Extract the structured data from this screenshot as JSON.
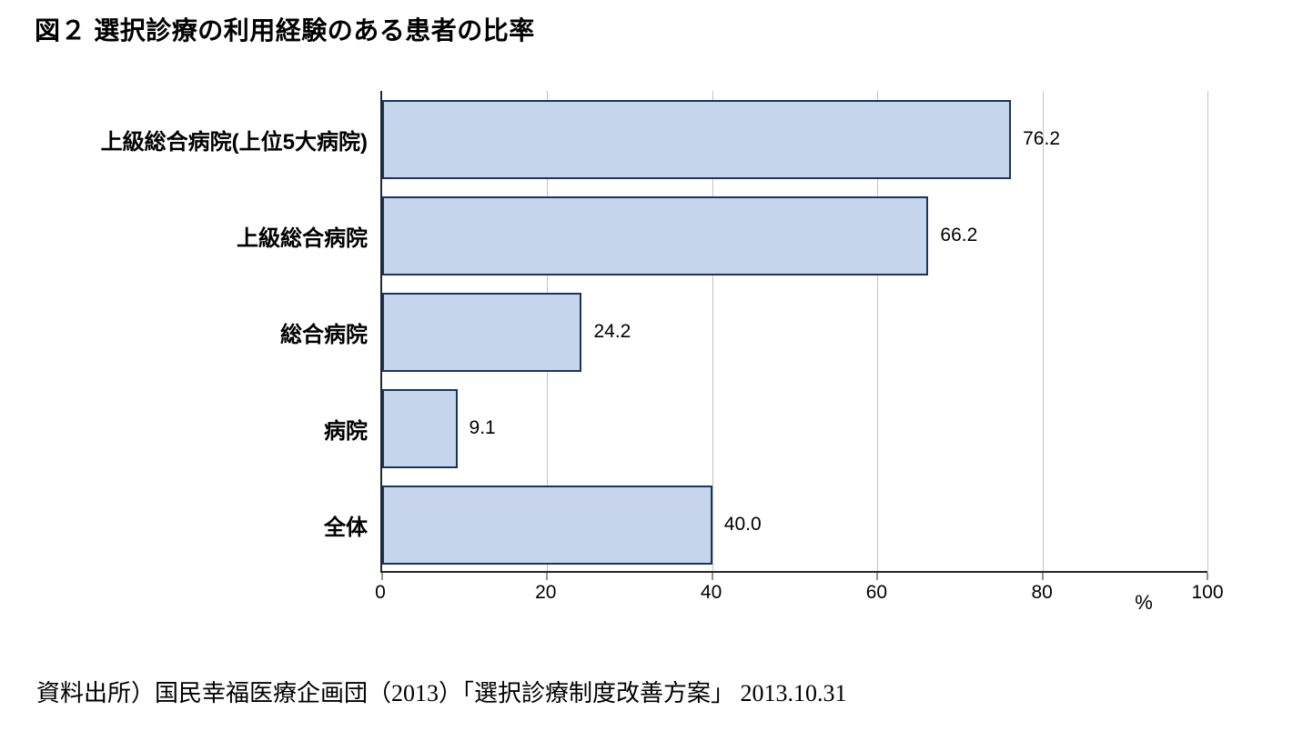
{
  "page": {
    "title": "図２ 選択診療の利用経験のある患者の比率",
    "source": "資料出所）国民幸福医療企画団（2013）「選択診療制度改善方案」 2013.10.31"
  },
  "chart_data": {
    "type": "bar",
    "orientation": "horizontal",
    "title": "図２ 選択診療の利用経験のある患者の比率",
    "categories": [
      "上級総合病院(上位5大病院)",
      "上級総合病院",
      "総合病院",
      "病院",
      "全体"
    ],
    "values": [
      76.2,
      66.2,
      24.2,
      9.1,
      40.0
    ],
    "value_labels": [
      "76.2",
      "66.2",
      "24.2",
      "9.1",
      "40.0"
    ],
    "xlabel": "%",
    "xlim": [
      0,
      100
    ],
    "xticks": [
      0,
      20,
      40,
      60,
      80,
      100
    ],
    "grid": true,
    "legend": "none",
    "bar_fill": "#c6d5ec",
    "bar_border": "#16365c",
    "gridline_color": "#c3c3c3",
    "axis_color": "#262626"
  }
}
